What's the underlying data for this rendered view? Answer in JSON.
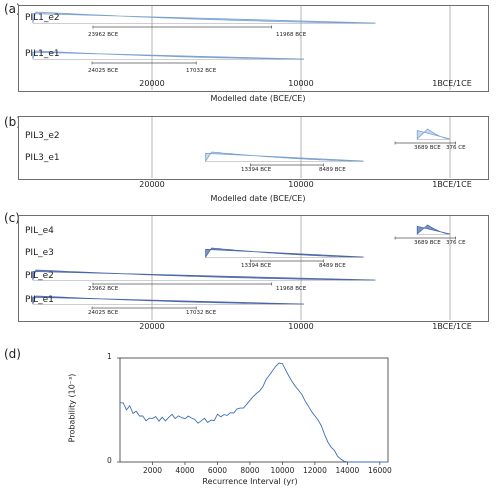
{
  "chart_data": [
    {
      "panel": "(a)",
      "type": "area",
      "xlabel": "Modelled date (BCE/CE)",
      "x_ticks": [
        "20000",
        "10000",
        "1BCE/1CE"
      ],
      "x_axis_units": "BCE",
      "xlim": [
        30000,
        -1000
      ],
      "series": [
        {
          "name": "PIL1_e2",
          "start": 28000,
          "end": 5000,
          "range_start_label": "23962 BCE",
          "range_end_label": "11968 BCE",
          "range_from": 23962,
          "range_to": 11968,
          "peak_at": 27800
        },
        {
          "name": "PIL1_e1",
          "start": 28000,
          "end": 9800,
          "range_start_label": "24025 BCE",
          "range_end_label": "17032 BCE",
          "range_from": 24025,
          "range_to": 17032,
          "peak_at": 27800
        }
      ]
    },
    {
      "panel": "(b)",
      "type": "area",
      "xlabel": "Modelled date (BCE/CE)",
      "x_ticks": [
        "20000",
        "10000",
        "1BCE/1CE"
      ],
      "xlim": [
        30000,
        -1000
      ],
      "series": [
        {
          "name": "PIL3_e2",
          "start": 2200,
          "end": 0,
          "range_start_label": "3689 BCE",
          "range_end_label": "376 CE",
          "range_from": 3689,
          "range_to": -376,
          "peak_at": 1500
        },
        {
          "name": "PIL3_e1",
          "start": 16400,
          "end": 5800,
          "range_start_label": "13394 BCE",
          "range_end_label": "8489 BCE",
          "range_from": 13394,
          "range_to": 8489,
          "peak_at": 16000
        }
      ]
    },
    {
      "panel": "(c)",
      "type": "area",
      "xlabel": "",
      "x_ticks": [
        "20000",
        "10000",
        "1BCE/1CE"
      ],
      "xlim": [
        30000,
        -1000
      ],
      "series": [
        {
          "name": "PIL_e4",
          "start": 2200,
          "end": 0,
          "range_start_label": "3689 BCE",
          "range_end_label": "376 CE",
          "range_from": 3689,
          "range_to": -376,
          "peak_at": 1500
        },
        {
          "name": "PIL_e3",
          "start": 16400,
          "end": 5800,
          "range_start_label": "13394 BCE",
          "range_end_label": "8489 BCE",
          "range_from": 13394,
          "range_to": 8489,
          "peak_at": 16000
        },
        {
          "name": "PIL_e2",
          "start": 28000,
          "end": 5000,
          "range_start_label": "23962 BCE",
          "range_end_label": "11968 BCE",
          "range_from": 23962,
          "range_to": 11968,
          "peak_at": 27800
        },
        {
          "name": "PIL_e1",
          "start": 28000,
          "end": 9800,
          "range_start_label": "24025 BCE",
          "range_end_label": "17032 BCE",
          "range_from": 24025,
          "range_to": 17032,
          "peak_at": 27800
        }
      ]
    },
    {
      "panel": "(d)",
      "type": "line",
      "xlabel": "Recurrence Interval (yr)",
      "ylabel": "Probability (10⁻³)",
      "xlim": [
        0,
        16500
      ],
      "ylim": [
        0,
        1
      ],
      "x_ticks": [
        "2000",
        "4000",
        "6000",
        "8000",
        "10000",
        "12000",
        "14000",
        "16000"
      ],
      "y_ticks": [
        "0",
        "1"
      ],
      "x": [
        0,
        200,
        400,
        600,
        800,
        1000,
        1200,
        1400,
        1600,
        1800,
        2000,
        2200,
        2400,
        2600,
        2800,
        3000,
        3200,
        3400,
        3600,
        3800,
        4000,
        4200,
        4400,
        4600,
        4800,
        5000,
        5200,
        5400,
        5600,
        5800,
        6000,
        6200,
        6400,
        6600,
        6800,
        7000,
        7200,
        7400,
        7600,
        7800,
        8000,
        8200,
        8400,
        8600,
        8800,
        9000,
        9200,
        9400,
        9600,
        9800,
        10000,
        10200,
        10400,
        10600,
        10800,
        11000,
        11200,
        11400,
        11600,
        11800,
        12000,
        12200,
        12400,
        12600,
        12800,
        13000,
        13200,
        13400,
        13600,
        13800,
        14000,
        14500,
        15000,
        15500,
        16000,
        16500
      ],
      "y": [
        0.57,
        0.55,
        0.5,
        0.53,
        0.46,
        0.48,
        0.43,
        0.44,
        0.41,
        0.43,
        0.42,
        0.44,
        0.41,
        0.43,
        0.4,
        0.42,
        0.44,
        0.41,
        0.43,
        0.42,
        0.4,
        0.43,
        0.41,
        0.42,
        0.39,
        0.41,
        0.43,
        0.4,
        0.42,
        0.41,
        0.44,
        0.42,
        0.45,
        0.44,
        0.47,
        0.46,
        0.49,
        0.5,
        0.53,
        0.56,
        0.6,
        0.63,
        0.67,
        0.7,
        0.73,
        0.78,
        0.83,
        0.87,
        0.92,
        0.95,
        0.94,
        0.88,
        0.83,
        0.78,
        0.74,
        0.69,
        0.66,
        0.6,
        0.55,
        0.5,
        0.44,
        0.4,
        0.33,
        0.26,
        0.19,
        0.14,
        0.1,
        0.07,
        0.04,
        0.02,
        0.0,
        0.0,
        0.0,
        0.0,
        0.0,
        0.0
      ]
    }
  ],
  "colors": {
    "light_fill": "#c9d9ee",
    "light_stroke": "#7aa0cf",
    "dark_fill": "#7c95c6",
    "dark_stroke": "#4a66a4",
    "line": "#3d6fb6",
    "grid": "#b5b5b5",
    "frame": "#6e6e6e"
  }
}
